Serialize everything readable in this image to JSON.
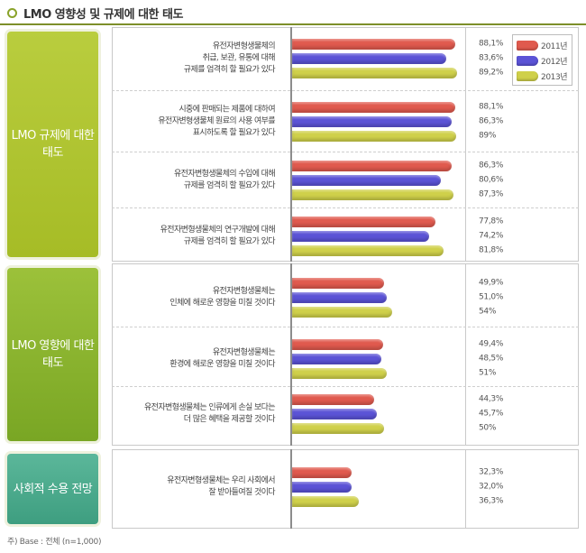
{
  "page": {
    "title": "LMO 영향성 및 규제에 대한 태도",
    "footnote": "주) Base : 전체 (n=1,000)"
  },
  "groups": [
    {
      "label": "LMO 규제에 대한 태도",
      "color": "#aec32e"
    },
    {
      "label": "LMO 영향에 대한 태도",
      "color": "#86ad2c"
    },
    {
      "label": "사회적 수용 전망",
      "color": "#4aa88a"
    }
  ],
  "legend": [
    {
      "label": "2011년",
      "color": "#e05a4e"
    },
    {
      "label": "2012년",
      "color": "#5b53d6"
    },
    {
      "label": "2013년",
      "color": "#cfd04a"
    }
  ],
  "chart_data": {
    "type": "bar",
    "orientation": "horizontal",
    "title": "LMO 영향성 및 규제에 대한 태도",
    "series_names": [
      "2011년",
      "2012년",
      "2013년"
    ],
    "unit": "%",
    "items": [
      {
        "group": 0,
        "label": [
          "유전자변형생물체의",
          "취급, 보관, 유통에 대해",
          "규제를 엄격히 할 필요가 있다"
        ],
        "values": [
          88.1,
          83.6,
          89.2
        ],
        "value_labels": [
          "88,1%",
          "83,6%",
          "89,2%"
        ]
      },
      {
        "group": 0,
        "label": [
          "시중에 판매되는 제품에 대하여",
          "유전자변형생물체 원료의 사용 여부를",
          "표시하도록 할 필요가 있다"
        ],
        "values": [
          88.1,
          86.3,
          89
        ],
        "value_labels": [
          "88,1%",
          "86,3%",
          "89%"
        ]
      },
      {
        "group": 0,
        "label": [
          "유전자변형생물체의 수입에 대해",
          "규제를 엄격히 할 필요가 있다"
        ],
        "values": [
          86.3,
          80.6,
          87.3
        ],
        "value_labels": [
          "86,3%",
          "80,6%",
          "87,3%"
        ]
      },
      {
        "group": 0,
        "label": [
          "유전자변형생물체의 연구개발에 대해",
          "규제를 엄격히 할 필요가 있다"
        ],
        "values": [
          77.8,
          74.2,
          81.8
        ],
        "value_labels": [
          "77,8%",
          "74,2%",
          "81,8%"
        ]
      },
      {
        "group": 1,
        "label": [
          "유전자변형생물체는",
          "인체에 해로운 영향을 미칠 것이다"
        ],
        "values": [
          49.9,
          51.0,
          54
        ],
        "value_labels": [
          "49,9%",
          "51,0%",
          "54%"
        ]
      },
      {
        "group": 1,
        "label": [
          "유전자변형생물체는",
          "환경에 해로운 영향을 미칠 것이다"
        ],
        "values": [
          49.4,
          48.5,
          51
        ],
        "value_labels": [
          "49,4%",
          "48,5%",
          "51%"
        ]
      },
      {
        "group": 1,
        "label": [
          "유전자변형생물체는 인류에게 손실 보다는",
          "더 많은 혜택을 제공할 것이다"
        ],
        "values": [
          44.3,
          45.7,
          50
        ],
        "value_labels": [
          "44,3%",
          "45,7%",
          "50%"
        ]
      },
      {
        "group": 2,
        "label": [
          "유전자변형생물체는 우리 사회에서",
          "잘 받아들여질 것이다"
        ],
        "values": [
          32.3,
          32.0,
          36.3
        ],
        "value_labels": [
          "32,3%",
          "32,0%",
          "36,3%"
        ]
      }
    ]
  }
}
